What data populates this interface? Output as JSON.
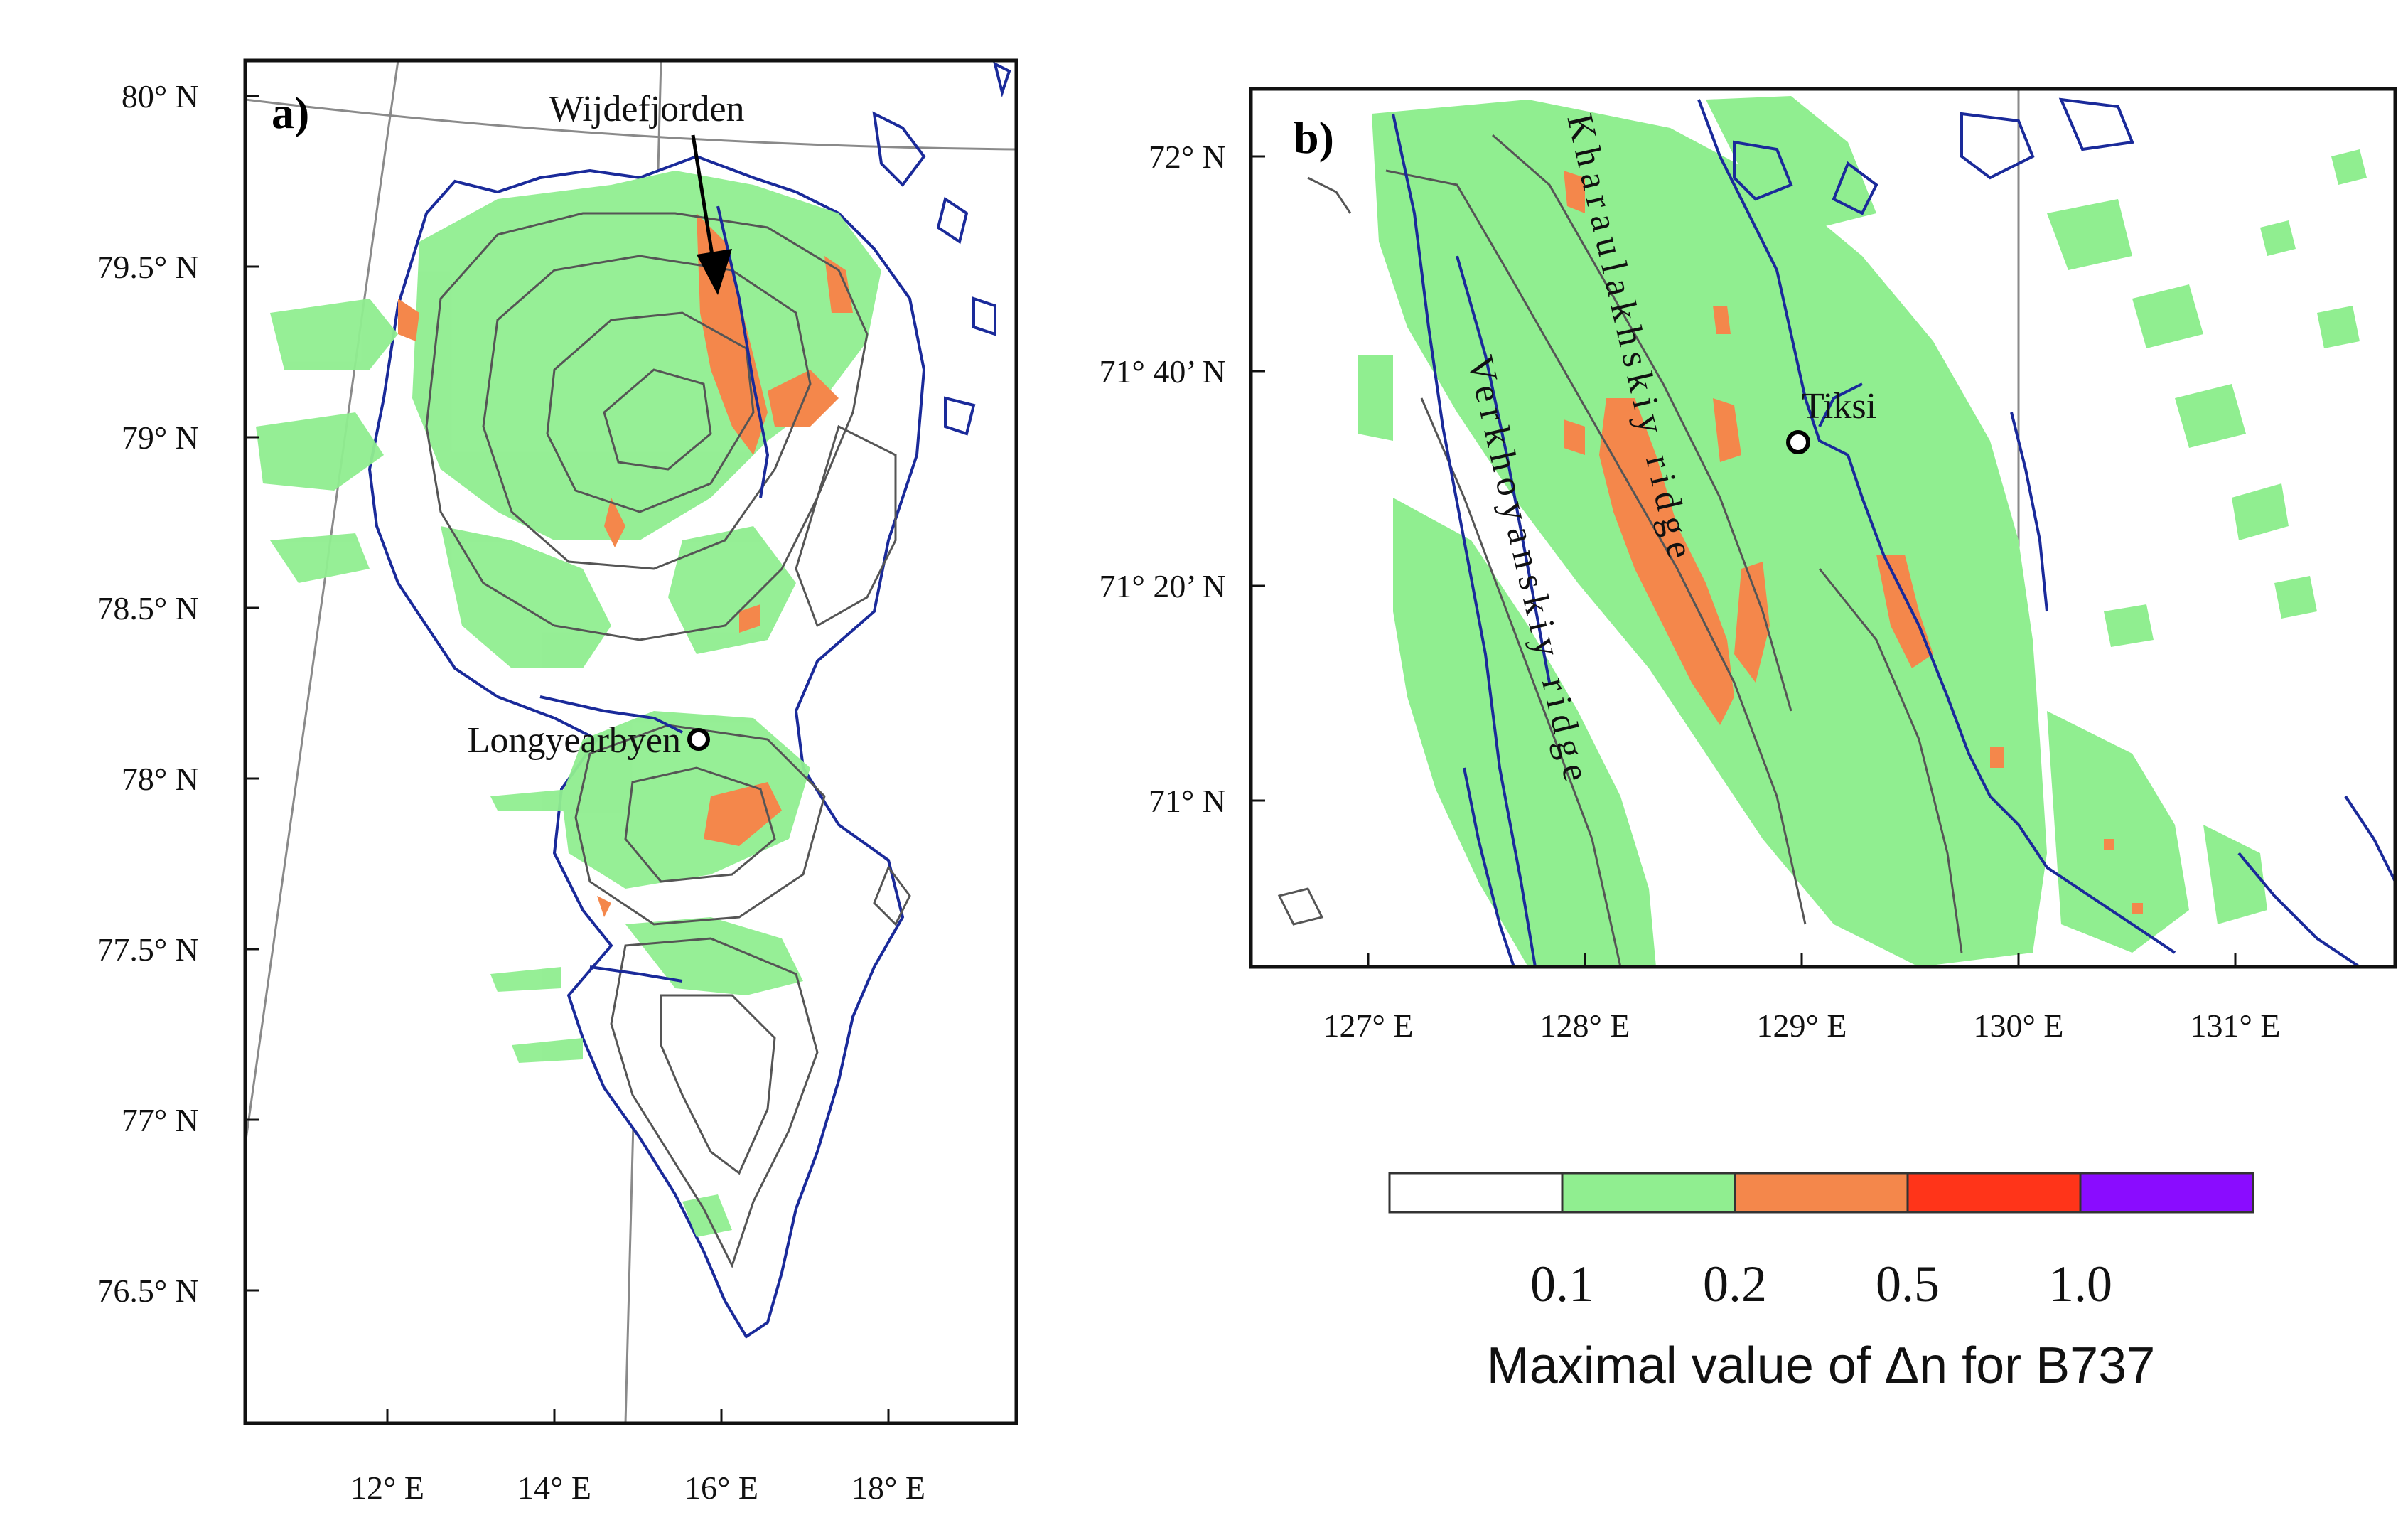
{
  "panel_a": {
    "label": "a)",
    "lat_ticks": [
      {
        "value": 80.0,
        "label": "80° N"
      },
      {
        "value": 79.5,
        "label": "79.5° N"
      },
      {
        "value": 79.0,
        "label": "79° N"
      },
      {
        "value": 78.5,
        "label": "78.5° N"
      },
      {
        "value": 78.0,
        "label": "78° N"
      },
      {
        "value": 77.5,
        "label": "77.5° N"
      },
      {
        "value": 77.0,
        "label": "77° N"
      },
      {
        "value": 76.5,
        "label": "76.5° N"
      }
    ],
    "lon_ticks": [
      {
        "value": 12,
        "label": "12° E"
      },
      {
        "value": 14,
        "label": "14° E"
      },
      {
        "value": 16,
        "label": "16° E"
      },
      {
        "value": 18,
        "label": "18° E"
      }
    ],
    "places": [
      {
        "name": "Wijdefjorden",
        "lat": 79.45,
        "lon": 16.1
      },
      {
        "name": "Longyearbyen",
        "lat": 78.22,
        "lon": 15.65
      }
    ]
  },
  "panel_b": {
    "label": "b)",
    "lat_ticks": [
      {
        "value": 72.0,
        "label": "72° N"
      },
      {
        "value": 71.6667,
        "label": "71° 40’ N"
      },
      {
        "value": 71.3333,
        "label": "71° 20’ N"
      },
      {
        "value": 71.0,
        "label": "71° N"
      }
    ],
    "lon_ticks": [
      {
        "value": 127,
        "label": "127° E"
      },
      {
        "value": 128,
        "label": "128° E"
      },
      {
        "value": 129,
        "label": "129° E"
      },
      {
        "value": 130,
        "label": "130° E"
      },
      {
        "value": 131,
        "label": "131° E"
      }
    ],
    "places": [
      {
        "name": "Tiksi",
        "lat": 71.63,
        "lon": 128.9
      }
    ],
    "ridges": [
      {
        "name": "Kharaulakhskiy ridge"
      },
      {
        "name": "Verkhoyanskiy ridge"
      }
    ]
  },
  "colorbar": {
    "title": "Maximal value of Δn for B737",
    "bins": [
      {
        "color": "#ffffff"
      },
      {
        "color": "#90ee90"
      },
      {
        "color": "#f4874b"
      },
      {
        "color": "#ff3419"
      },
      {
        "color": "#8a0cff"
      }
    ],
    "tick_labels": [
      "0.1",
      "0.2",
      "0.5",
      "1.0"
    ]
  },
  "colors": {
    "frame": "#111111",
    "coast": "#1a2a9a",
    "terrain_contour": "#555555",
    "graticule": "#8a8a8a",
    "low": "#90ee90",
    "mid": "#f4874b"
  }
}
